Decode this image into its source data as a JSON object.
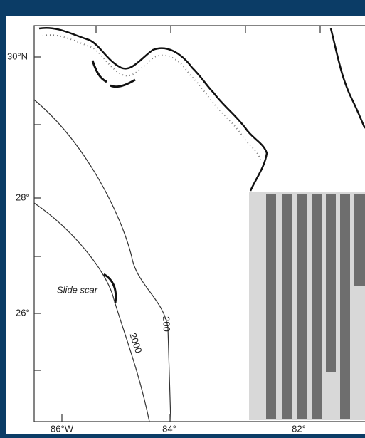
{
  "map": {
    "lat_labels": [
      "30°N",
      "28°",
      "26°"
    ],
    "lon_labels": [
      "86°W",
      "84°",
      "82°"
    ],
    "annotation": "Slide scar",
    "contours": [
      "2000",
      "200"
    ]
  }
}
